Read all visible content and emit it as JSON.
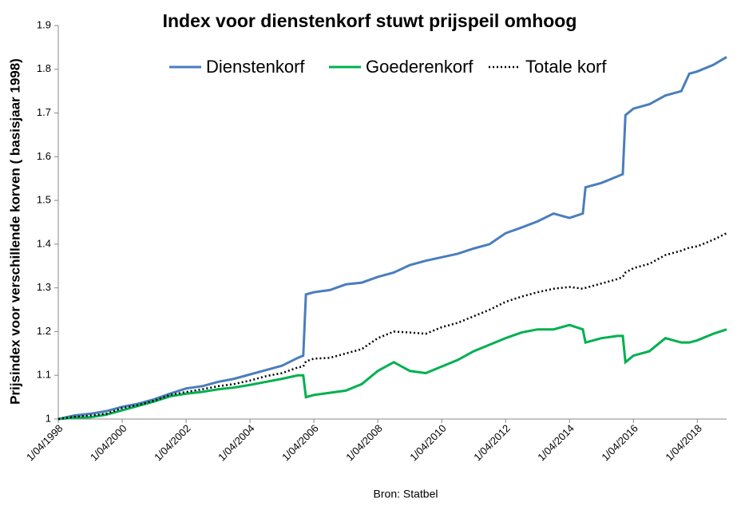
{
  "chart_data": {
    "type": "line",
    "title": "Index voor dienstenkorf stuwt prijspeil omhoog",
    "y_label": "Prijsindex voor verschillende korven ( basisjaar 1998)",
    "source": "Bron: Statbel",
    "x": [
      "1/04/1998",
      "1/10/1998",
      "1/04/1999",
      "1/10/1999",
      "1/04/2000",
      "1/10/2000",
      "1/04/2001",
      "1/10/2001",
      "1/04/2002",
      "1/10/2002",
      "1/04/2003",
      "1/10/2003",
      "1/04/2004",
      "1/10/2004",
      "1/04/2005",
      "1/10/2005",
      "1/12/2005",
      "1/01/2006",
      "1/04/2006",
      "1/10/2006",
      "1/04/2007",
      "1/10/2007",
      "1/04/2008",
      "1/10/2008",
      "1/04/2009",
      "1/10/2009",
      "1/04/2010",
      "1/10/2010",
      "1/04/2011",
      "1/10/2011",
      "1/04/2012",
      "1/10/2012",
      "1/04/2013",
      "1/10/2013",
      "1/04/2014",
      "1/09/2014",
      "1/10/2014",
      "1/04/2015",
      "1/10/2015",
      "1/12/2015",
      "1/01/2016",
      "1/04/2016",
      "1/10/2016",
      "1/04/2017",
      "1/10/2017",
      "1/01/2018",
      "1/04/2018",
      "1/10/2018",
      "1/03/2019"
    ],
    "series": [
      {
        "name": "Dienstenkorf",
        "color": "#4a7ebb",
        "style": "solid",
        "values": [
          1.0,
          1.008,
          1.012,
          1.018,
          1.028,
          1.035,
          1.045,
          1.058,
          1.07,
          1.075,
          1.085,
          1.092,
          1.102,
          1.112,
          1.122,
          1.14,
          1.145,
          1.285,
          1.29,
          1.295,
          1.308,
          1.312,
          1.325,
          1.335,
          1.352,
          1.362,
          1.37,
          1.378,
          1.39,
          1.4,
          1.425,
          1.438,
          1.452,
          1.47,
          1.46,
          1.47,
          1.53,
          1.54,
          1.555,
          1.56,
          1.695,
          1.71,
          1.72,
          1.74,
          1.75,
          1.79,
          1.795,
          1.81,
          1.828
        ]
      },
      {
        "name": "Goederenkorf",
        "color": "#00b050",
        "style": "solid",
        "values": [
          1.0,
          1.003,
          1.004,
          1.01,
          1.02,
          1.03,
          1.04,
          1.052,
          1.058,
          1.062,
          1.068,
          1.072,
          1.078,
          1.085,
          1.092,
          1.1,
          1.1,
          1.05,
          1.055,
          1.06,
          1.065,
          1.08,
          1.11,
          1.13,
          1.11,
          1.105,
          1.12,
          1.135,
          1.155,
          1.17,
          1.185,
          1.198,
          1.205,
          1.205,
          1.215,
          1.205,
          1.175,
          1.185,
          1.19,
          1.19,
          1.13,
          1.145,
          1.155,
          1.185,
          1.175,
          1.175,
          1.18,
          1.195,
          1.205
        ]
      },
      {
        "name": "Totale korf",
        "color": "#000000",
        "style": "dotted",
        "values": [
          1.0,
          1.005,
          1.008,
          1.012,
          1.025,
          1.032,
          1.042,
          1.055,
          1.062,
          1.068,
          1.075,
          1.08,
          1.088,
          1.098,
          1.105,
          1.118,
          1.12,
          1.132,
          1.138,
          1.14,
          1.15,
          1.16,
          1.185,
          1.2,
          1.198,
          1.195,
          1.21,
          1.22,
          1.235,
          1.25,
          1.268,
          1.28,
          1.29,
          1.298,
          1.302,
          1.298,
          1.3,
          1.31,
          1.32,
          1.325,
          1.335,
          1.345,
          1.355,
          1.375,
          1.385,
          1.392,
          1.395,
          1.41,
          1.425
        ]
      }
    ],
    "xlim": [
      "1/04/1998",
      "1/03/2019"
    ],
    "xticks": [
      "1/04/1998",
      "1/04/2000",
      "1/04/2002",
      "1/04/2004",
      "1/04/2006",
      "1/04/2008",
      "1/04/2010",
      "1/04/2012",
      "1/04/2014",
      "1/04/2016",
      "1/04/2018"
    ],
    "ylim": [
      1,
      1.9
    ],
    "yticks": [
      1,
      1.1,
      1.2,
      1.3,
      1.4,
      1.5,
      1.6,
      1.7,
      1.8,
      1.9
    ],
    "legend": "top"
  }
}
